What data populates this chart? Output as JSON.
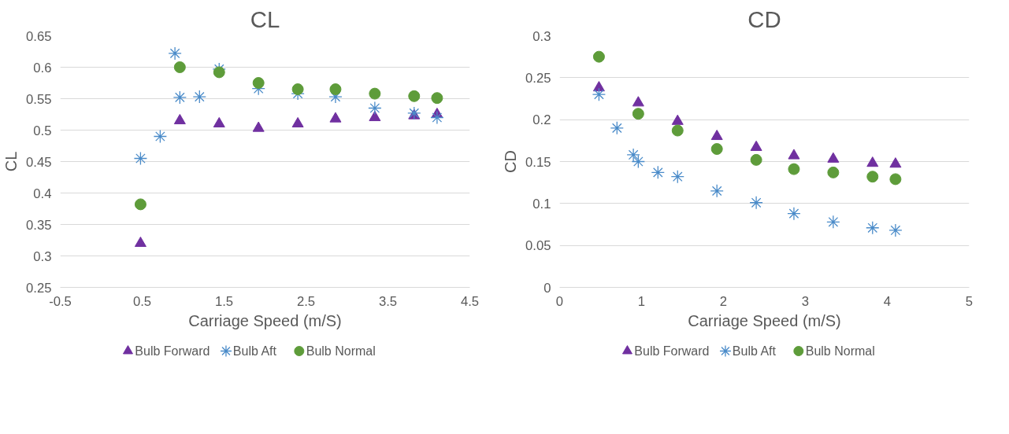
{
  "chart_data": [
    {
      "type": "scatter",
      "title": "CL",
      "xlabel": "Carriage Speed (m/S)",
      "ylabel": "CL",
      "xlim": [
        -0.5,
        4.5
      ],
      "xticks": [
        -0.5,
        0.5,
        1.5,
        2.5,
        3.5,
        4.5
      ],
      "ylim": [
        0.25,
        0.65
      ],
      "yticks": [
        0.25,
        0.3,
        0.35,
        0.4,
        0.45,
        0.5,
        0.55,
        0.6,
        0.65
      ],
      "grid": "y",
      "legend": "bottom",
      "series": [
        {
          "name": "Bulb Forward",
          "color": "#7030a0",
          "marker": "triangle",
          "x": [
            0.48,
            0.96,
            1.44,
            1.92,
            2.4,
            2.86,
            3.34,
            3.82,
            4.1
          ],
          "values": [
            0.32,
            0.515,
            0.51,
            0.503,
            0.51,
            0.518,
            0.52,
            0.523,
            0.525
          ]
        },
        {
          "name": "Bulb Aft",
          "color": "#4a8bc9",
          "marker": "cross",
          "x": [
            0.48,
            0.72,
            0.9,
            0.96,
            1.2,
            1.44,
            1.92,
            2.4,
            2.86,
            3.34,
            3.82,
            4.1
          ],
          "values": [
            0.455,
            0.49,
            0.622,
            0.552,
            0.553,
            0.597,
            0.566,
            0.558,
            0.553,
            0.535,
            0.527,
            0.52
          ]
        },
        {
          "name": "Bulb Normal",
          "color": "#5e9c3a",
          "marker": "circle",
          "x": [
            0.48,
            0.96,
            1.44,
            1.92,
            2.4,
            2.86,
            3.34,
            3.82,
            4.1
          ],
          "values": [
            0.382,
            0.6,
            0.592,
            0.575,
            0.565,
            0.565,
            0.558,
            0.554,
            0.551
          ]
        }
      ]
    },
    {
      "type": "scatter",
      "title": "CD",
      "xlabel": "Carriage Speed (m/S)",
      "ylabel": "CD",
      "xlim": [
        0,
        5
      ],
      "xticks": [
        0,
        1,
        2,
        3,
        4,
        5
      ],
      "ylim": [
        0,
        0.3
      ],
      "yticks": [
        0,
        0.05,
        0.1,
        0.15,
        0.2,
        0.25,
        0.3
      ],
      "grid": "y",
      "legend": "bottom",
      "series": [
        {
          "name": "Bulb Forward",
          "color": "#7030a0",
          "marker": "triangle",
          "x": [
            0.48,
            0.96,
            1.44,
            1.92,
            2.4,
            2.86,
            3.34,
            3.82,
            4.1
          ],
          "values": [
            0.238,
            0.22,
            0.198,
            0.18,
            0.167,
            0.157,
            0.153,
            0.148,
            0.147
          ]
        },
        {
          "name": "Bulb Aft",
          "color": "#4a8bc9",
          "marker": "cross",
          "x": [
            0.48,
            0.7,
            0.9,
            0.96,
            1.2,
            1.44,
            1.92,
            2.4,
            2.86,
            3.34,
            3.82,
            4.1
          ],
          "values": [
            0.23,
            0.19,
            0.158,
            0.15,
            0.137,
            0.132,
            0.115,
            0.101,
            0.088,
            0.078,
            0.071,
            0.068
          ]
        },
        {
          "name": "Bulb Normal",
          "color": "#5e9c3a",
          "marker": "circle",
          "x": [
            0.48,
            0.96,
            1.44,
            1.92,
            2.4,
            2.86,
            3.34,
            3.82,
            4.1
          ],
          "values": [
            0.275,
            0.207,
            0.187,
            0.165,
            0.152,
            0.141,
            0.137,
            0.132,
            0.129
          ]
        }
      ]
    }
  ]
}
